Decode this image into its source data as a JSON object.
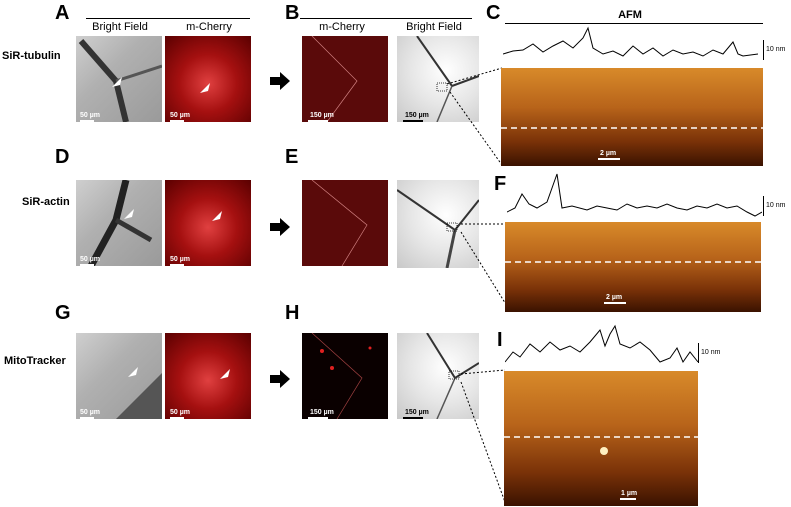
{
  "panel_letters": {
    "A": "A",
    "B": "B",
    "C": "C",
    "D": "D",
    "E": "E",
    "F": "F",
    "G": "G",
    "H": "H",
    "I": "I"
  },
  "row_labels": {
    "row1": "SiR-tubulin",
    "row2": "SiR-actin",
    "row3": "MitoTracker"
  },
  "column_headers": {
    "a_left": "Bright Field",
    "a_right": "m-Cherry",
    "b_left": "m-Cherry",
    "b_right": "Bright Field",
    "afm": "AFM"
  },
  "scale_labels": {
    "s50": "50 µm",
    "s150": "150 µm",
    "s2": "2 µm",
    "s1": "1 µm"
  },
  "height_scale_label": "10 nm",
  "colors": {
    "bright_field": "#b5b5b5",
    "mcherry": "#c01818",
    "afm": "#c06a1a",
    "text": "#000000"
  }
}
